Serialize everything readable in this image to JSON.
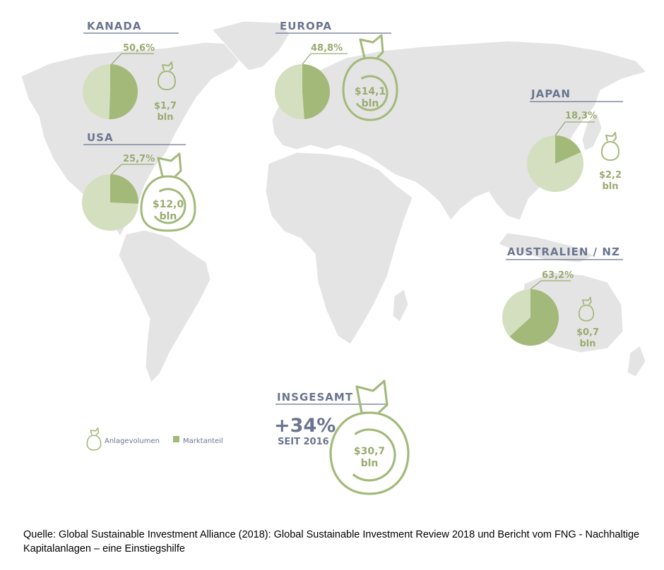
{
  "colors": {
    "map": "#e4e4e4",
    "map_border": "#ffffff",
    "share": "#a3b97a",
    "rest": "#d3dfbf",
    "bag": "#a3b97a",
    "text_green": "#9aab70",
    "text_navy": "#6b7590"
  },
  "chart_data": {
    "type": "pie",
    "unit_share": "%",
    "unit_volume": "bln USD",
    "regions": [
      {
        "name": "KANADA",
        "share": 50.6,
        "share_label": "50,6%",
        "volume": 1.7,
        "volume_label": "$1,7",
        "volume_unit": "bln"
      },
      {
        "name": "EUROPA",
        "share": 48.8,
        "share_label": "48,8%",
        "volume": 14.1,
        "volume_label": "$14,1",
        "volume_unit": "bln"
      },
      {
        "name": "USA",
        "share": 25.7,
        "share_label": "25,7%",
        "volume": 12.0,
        "volume_label": "$12,0",
        "volume_unit": "bln"
      },
      {
        "name": "JAPAN",
        "share": 18.3,
        "share_label": "18,3%",
        "volume": 2.2,
        "volume_label": "$2,2",
        "volume_unit": "bln"
      },
      {
        "name": "AUSTRALIEN / NZ",
        "share": 63.2,
        "share_label": "63,2%",
        "volume": 0.7,
        "volume_label": "$0,7",
        "volume_unit": "bln"
      }
    ],
    "total": {
      "title": "INSGESAMT",
      "growth_label": "+34%",
      "since_label": "SEIT 2016",
      "volume": 30.7,
      "volume_label": "$30,7",
      "volume_unit": "bln"
    },
    "legend": [
      {
        "icon": "money-bag-icon",
        "label": "Anlagevolumen"
      },
      {
        "icon": "square-swatch",
        "label": "Marktanteil"
      }
    ]
  },
  "source": "Quelle: Global Sustainable Investment Alliance (2018): Global Sustainable Investment Review 2018 und Bericht vom FNG - Nachhaltige Kapitalanlagen – eine Einstiegshilfe"
}
